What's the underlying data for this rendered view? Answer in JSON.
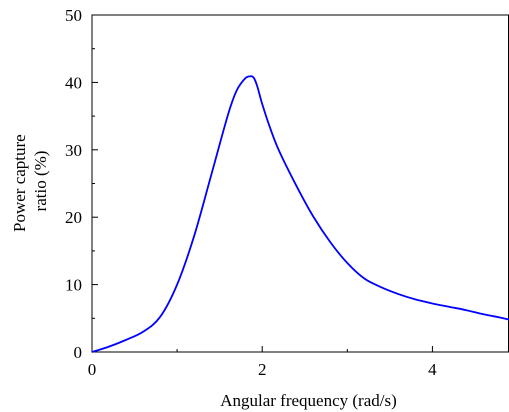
{
  "chart_data": {
    "type": "line",
    "title": "",
    "xlabel": "Angular frequency (rad/s)",
    "ylabel_lines": [
      "Power capture",
      "ratio (%)"
    ],
    "xlim": [
      0,
      4.9
    ],
    "ylim": [
      0,
      50
    ],
    "xticks": [
      0,
      2,
      4
    ],
    "xtick_labels": [
      "0",
      "2",
      "4"
    ],
    "x_minor_ticks": [
      1,
      3
    ],
    "yticks": [
      0,
      10,
      20,
      30,
      40,
      50
    ],
    "ytick_labels": [
      "0",
      "10",
      "20",
      "30",
      "40",
      "50"
    ],
    "y_minor_ticks": [
      5,
      15,
      25,
      35,
      45
    ],
    "grid": false,
    "legend": "none",
    "series": [
      {
        "color": "#0000ff",
        "x": [
          0,
          0.2,
          0.4,
          0.6,
          0.8,
          1.0,
          1.2,
          1.4,
          1.6,
          1.7,
          1.8,
          1.86,
          1.9,
          1.94,
          2.0,
          2.1,
          2.2,
          2.4,
          2.6,
          2.8,
          3.0,
          3.2,
          3.4,
          3.6,
          3.8,
          4.0,
          4.2,
          4.4,
          4.6,
          4.8,
          4.9
        ],
        "y": [
          0,
          0.8,
          1.8,
          3.0,
          5.2,
          10.0,
          17.2,
          26.2,
          35.3,
          38.8,
          40.6,
          40.9,
          40.7,
          39.5,
          36.8,
          33.0,
          29.8,
          24.7,
          20.1,
          16.3,
          13.2,
          10.9,
          9.6,
          8.6,
          7.8,
          7.2,
          6.7,
          6.2,
          5.6,
          5.1,
          4.8
        ]
      }
    ]
  }
}
